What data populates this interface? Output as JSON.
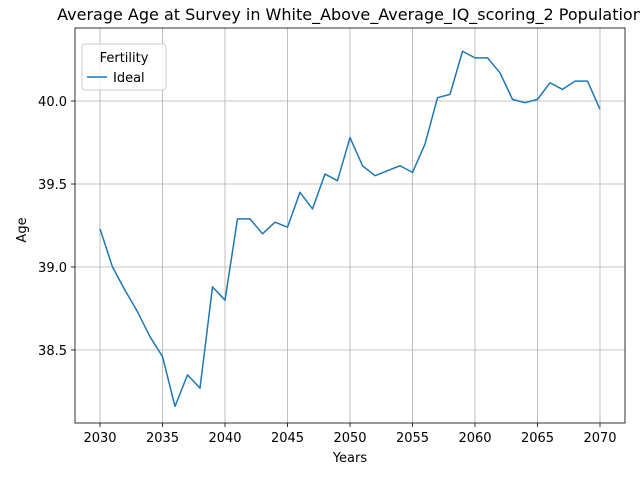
{
  "chart_data": {
    "type": "line",
    "title": "Average Age at Survey in White_Above_Average_IQ_scoring_2 Population",
    "xlabel": "Years",
    "ylabel": "Age",
    "xlim": [
      2028,
      2072
    ],
    "ylim": [
      38.06,
      40.44
    ],
    "xticks": [
      2030,
      2035,
      2040,
      2045,
      2050,
      2055,
      2060,
      2065,
      2070
    ],
    "yticks": [
      38.5,
      39.0,
      39.5,
      40.0
    ],
    "ytick_labels": [
      "38.5",
      "39.0",
      "39.5",
      "40.0"
    ],
    "grid": true,
    "legend": {
      "title": "Fertility",
      "position": "top-left"
    },
    "series": [
      {
        "name": "Ideal",
        "color": "#1f77b4",
        "x": [
          2030,
          2031,
          2032,
          2033,
          2034,
          2035,
          2036,
          2037,
          2038,
          2039,
          2040,
          2041,
          2042,
          2043,
          2044,
          2045,
          2046,
          2047,
          2048,
          2049,
          2050,
          2051,
          2052,
          2053,
          2054,
          2055,
          2056,
          2057,
          2058,
          2059,
          2060,
          2061,
          2062,
          2063,
          2064,
          2065,
          2066,
          2067,
          2068,
          2069,
          2070
        ],
        "values": [
          39.23,
          39.0,
          38.86,
          38.73,
          38.58,
          38.46,
          38.16,
          38.35,
          38.27,
          38.88,
          38.8,
          39.29,
          39.29,
          39.2,
          39.27,
          39.24,
          39.45,
          39.35,
          39.56,
          39.52,
          39.78,
          39.61,
          39.55,
          39.58,
          39.61,
          39.57,
          39.74,
          40.02,
          40.04,
          40.3,
          40.26,
          40.26,
          40.17,
          40.01,
          39.99,
          40.01,
          40.11,
          40.07,
          40.12,
          40.12,
          39.95
        ]
      }
    ]
  }
}
